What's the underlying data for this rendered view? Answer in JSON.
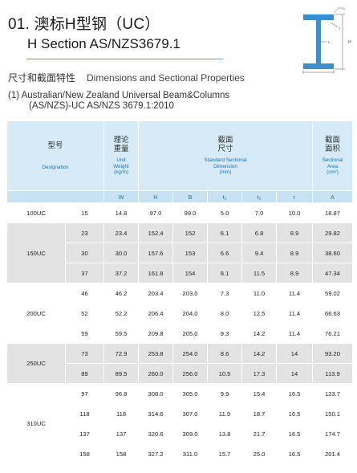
{
  "title": {
    "line1": "01. 澳标H型钢（UC）",
    "line2": "H Section   AS/NZS3679.1"
  },
  "subtitle": {
    "cn": "尺寸和截面特性",
    "en": "Dimensions and Sectional Properties"
  },
  "note": {
    "line1": "(1) Australian/New Zealand Universal Beam&Columns",
    "line2": "(AS/NZS)-UC  AS/NZS 3679.1:2010"
  },
  "diagram": {
    "labels": {
      "b": "B",
      "h": "H",
      "t1": "t₁",
      "t2": "t₂",
      "r": "r"
    },
    "colors": {
      "steel": "#3a8fd1",
      "dim": "#555555"
    }
  },
  "header": {
    "designation": {
      "cn": "型号",
      "en": "Designation"
    },
    "weight": {
      "cn": "理论\n重量",
      "en": "Unit\nWeight\n(kg/m)"
    },
    "dimension": {
      "cn": "截面\n尺寸",
      "en": "Standard Sectional\nDimension\n(mm)"
    },
    "area": {
      "cn": "截面\n面积",
      "en": "Sectional\nArea\n(cm²)"
    },
    "units": [
      "W",
      "H",
      "B",
      "t₁",
      "t₂",
      "r",
      "A"
    ]
  },
  "groups": [
    {
      "name": "100UC",
      "shade": "white",
      "rows": [
        [
          "15",
          "14.8",
          "97.0",
          "99.0",
          "5.0",
          "7.0",
          "10.0",
          "18.87"
        ]
      ]
    },
    {
      "name": "150UC",
      "shade": "grey",
      "rows": [
        [
          "23",
          "23.4",
          "152.4",
          "152",
          "6.1",
          "6.8",
          "8.9",
          "29.82"
        ],
        [
          "30",
          "30.0",
          "157.6",
          "153",
          "6.6",
          "9.4",
          "8.9",
          "38.60"
        ],
        [
          "37",
          "37.2",
          "161.8",
          "154",
          "8.1",
          "11.5",
          "8.9",
          "47.34"
        ]
      ]
    },
    {
      "name": "200UC",
      "shade": "white",
      "rows": [
        [
          "46",
          "46.2",
          "203.4",
          "203.0",
          "7.3",
          "11.0",
          "11.4",
          "59.02"
        ],
        [
          "52",
          "52.2",
          "206.4",
          "204.0",
          "8.0",
          "12.5",
          "11.4",
          "66.63"
        ],
        [
          "59",
          "59.5",
          "209.8",
          "205.0",
          "9.3",
          "14.2",
          "11.4",
          "76.21"
        ]
      ]
    },
    {
      "name": "250UC",
      "shade": "grey",
      "rows": [
        [
          "73",
          "72.9",
          "253.8",
          "254.0",
          "8.6",
          "14.2",
          "14",
          "93.20"
        ],
        [
          "89",
          "89.5",
          "260.0",
          "256.0",
          "10.5",
          "17.3",
          "14",
          "113.9"
        ]
      ]
    },
    {
      "name": "310UC",
      "shade": "white",
      "rows": [
        [
          "97",
          "96.8",
          "308.0",
          "305.0",
          "9.9",
          "15.4",
          "16.5",
          "123.7"
        ],
        [
          "118",
          "118",
          "314.6",
          "307.0",
          "11.9",
          "18.7",
          "16.5",
          "150.1"
        ],
        [
          "137",
          "137",
          "320.6",
          "309.0",
          "13.8",
          "21.7",
          "16.5",
          "174.7"
        ],
        [
          "158",
          "158",
          "327.2",
          "311.0",
          "15.7",
          "25.0",
          "16.5",
          "201.4"
        ]
      ]
    }
  ]
}
